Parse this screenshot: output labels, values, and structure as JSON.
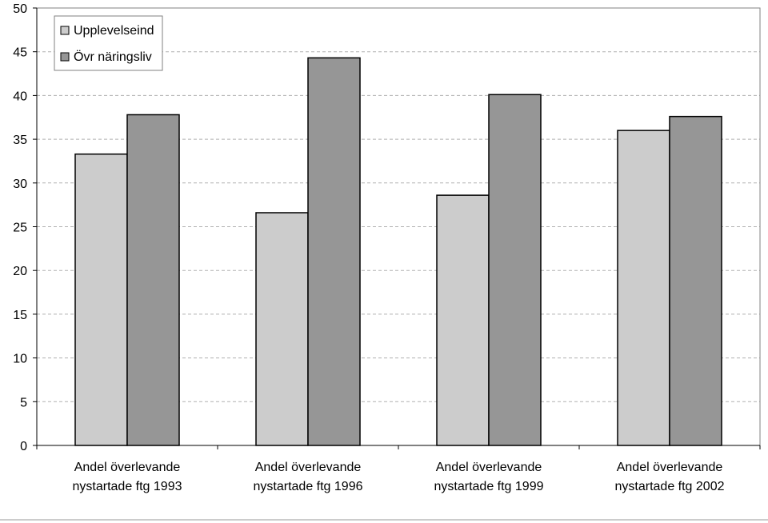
{
  "chart_data": {
    "type": "bar",
    "categories": [
      [
        "Andel överlevande",
        "nystartade ftg 1993"
      ],
      [
        "Andel överlevande",
        "nystartade ftg 1996"
      ],
      [
        "Andel överlevande",
        "nystartade ftg 1999"
      ],
      [
        "Andel överlevande",
        "nystartade ftg 2002"
      ]
    ],
    "series": [
      {
        "name": "Upplevelseind",
        "values": [
          33.3,
          26.6,
          28.6,
          36.0
        ],
        "color": "#cccccc"
      },
      {
        "name": "Övr näringsliv",
        "values": [
          37.8,
          44.3,
          40.1,
          37.6
        ],
        "color": "#969696"
      }
    ],
    "ylim": [
      0,
      50
    ],
    "yticks": [
      0,
      5,
      10,
      15,
      20,
      25,
      30,
      35,
      40,
      45,
      50
    ],
    "grid": true,
    "legend_position": "top-left",
    "title": "",
    "xlabel": "",
    "ylabel": ""
  }
}
